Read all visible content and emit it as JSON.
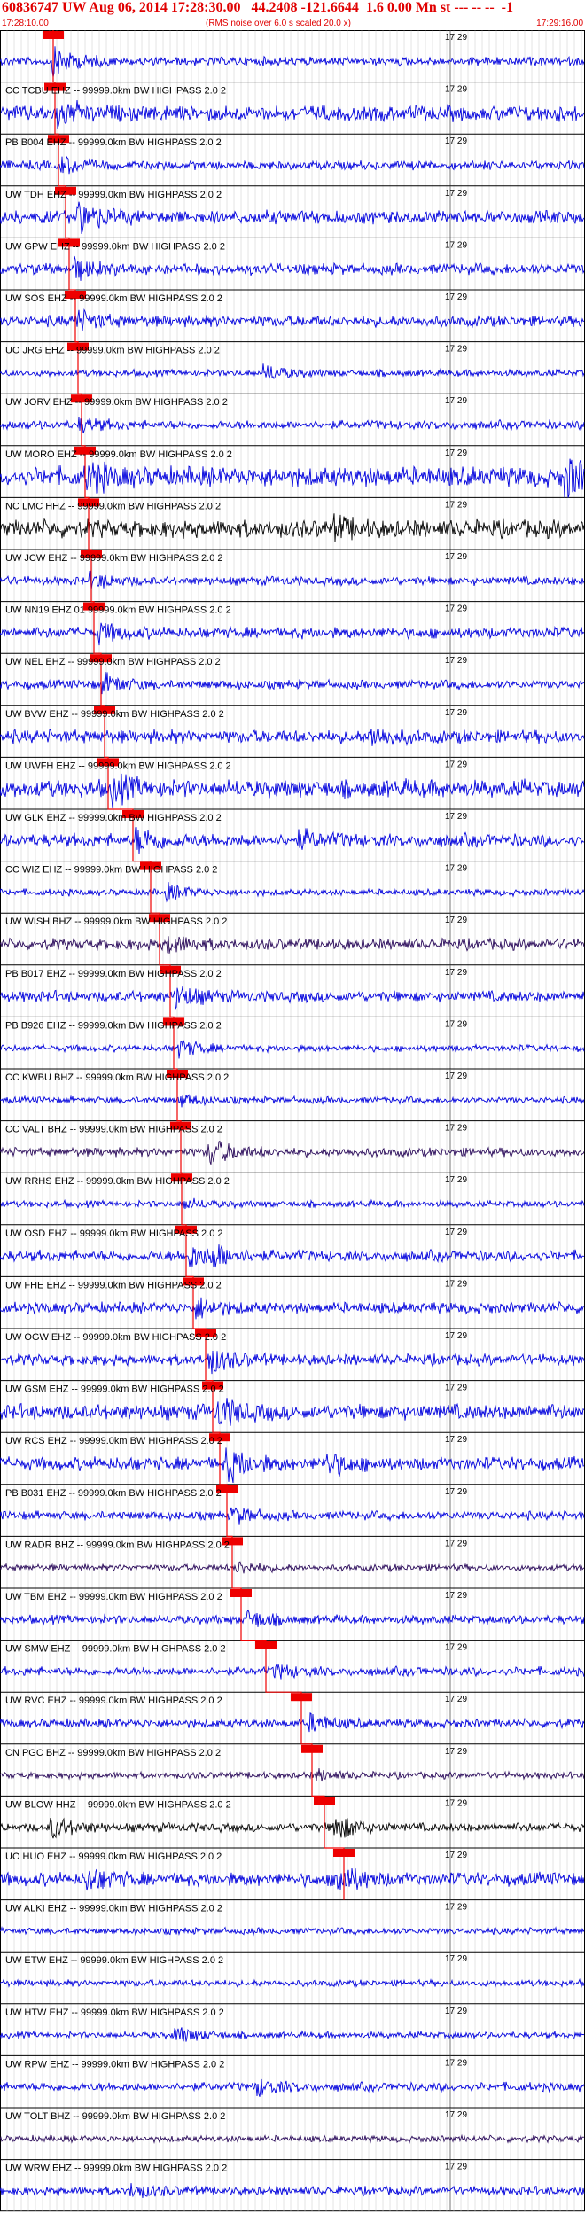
{
  "header": {
    "title": "60836747 UW Aug 06, 2014 17:28:30.00   44.2408 -121.6644  1.6 0.00 Mn st --- -- --  -1",
    "start_time": "17:28:10.00",
    "note": "(RMS noise over 6.0 s scaled 20.0 x)",
    "end_time": "17:29:16.00"
  },
  "chart_data": {
    "type": "line",
    "title": "60836747 UW Aug 06, 2014 17:28:30.00   44.2408 -121.6644  1.6 0.00 Mn st --- -- --  -1",
    "x_range": [
      "17:28:10.00",
      "17:29:16.00"
    ],
    "tick_label": "17:29",
    "grid": true,
    "colors": {
      "trace_default": "#0000dd",
      "trace_dark": "#000000",
      "trace_purple": "#2a0a5a",
      "pick": "#ee0000",
      "header": "#e00000"
    },
    "traces": [
      {
        "label": "",
        "pick_x": 60,
        "amp": 4,
        "color": "#0000dd",
        "events": [
          [
            62,
            14
          ]
        ]
      },
      {
        "label": "CC TCBU EHZ -- 99999.0km BW  HIGHPASS  2.0  2",
        "pick_x": 62,
        "amp": 7,
        "color": "#0000dd",
        "events": [
          [
            66,
            12
          ]
        ]
      },
      {
        "label": "PB B004 EHZ -- 99999.0km BW  HIGHPASS  2.0  2",
        "pick_x": 66,
        "amp": 4,
        "color": "#0000dd",
        "events": [
          [
            70,
            8
          ]
        ]
      },
      {
        "label": "UW TDH EHZ -- 99999.0km BW  HIGHPASS  2.0  2",
        "pick_x": 74,
        "amp": 6,
        "color": "#0000dd",
        "events": [
          [
            90,
            14
          ]
        ]
      },
      {
        "label": "UW GPW EHZ -- 99999.0km BW  HIGHPASS  2.0  2",
        "pick_x": 78,
        "amp": 5,
        "color": "#0000dd",
        "events": [
          [
            84,
            10
          ]
        ]
      },
      {
        "label": "UW SOS EHZ -- 99999.0km BW  HIGHPASS  2.0  2",
        "pick_x": 85,
        "amp": 5,
        "color": "#0000dd",
        "events": [
          [
            88,
            9
          ]
        ]
      },
      {
        "label": "UO JRG EHZ -- 99999.0km BW  HIGHPASS  2.0  2",
        "pick_x": 88,
        "amp": 3,
        "color": "#0000dd",
        "events": [
          [
            300,
            8
          ]
        ]
      },
      {
        "label": "UW JORV EHZ -- 99999.0km BW  HIGHPASS  2.0  2",
        "pick_x": 92,
        "amp": 4,
        "color": "#0000dd",
        "events": [
          [
            92,
            6
          ]
        ]
      },
      {
        "label": "UW MORO EHZ -- 99999.0km BW  HIGHPASS  2.0  2",
        "pick_x": 96,
        "amp": 9,
        "color": "#0000dd",
        "events": [
          [
            100,
            12
          ],
          [
            640,
            18
          ]
        ]
      },
      {
        "label": "NC LMC HHZ -- 99999.0km BW  HIGHPASS  2.0  2",
        "pick_x": 100,
        "amp": 8,
        "color": "#000000",
        "events": [
          [
            380,
            8
          ]
        ]
      },
      {
        "label": "UW JCW EHZ -- 99999.0km BW  HIGHPASS  2.0  2",
        "pick_x": 103,
        "amp": 4,
        "color": "#0000dd",
        "events": [
          [
            104,
            7
          ]
        ]
      },
      {
        "label": "UW NN19 EHZ 01 99999.0km BW  HIGHPASS  2.0  2",
        "pick_x": 106,
        "amp": 5,
        "color": "#0000dd",
        "events": [
          [
            112,
            9
          ]
        ]
      },
      {
        "label": "UW NEL EHZ -- 99999.0km BW  HIGHPASS  2.0  2",
        "pick_x": 114,
        "amp": 4,
        "color": "#0000dd",
        "events": [
          [
            118,
            10
          ]
        ]
      },
      {
        "label": "UW BVW EHZ -- 99999.0km BW  HIGHPASS  2.0  2",
        "pick_x": 118,
        "amp": 6,
        "color": "#0000dd",
        "events": [
          [
            420,
            9
          ]
        ]
      },
      {
        "label": "UW UWFH EHZ -- 99999.0km BW  HIGHPASS  2.0  2",
        "pick_x": 122,
        "amp": 8,
        "color": "#0000dd",
        "events": [
          [
            126,
            12
          ]
        ]
      },
      {
        "label": "UW GLK EHZ -- 99999.0km BW  HIGHPASS  2.0  2",
        "pick_x": 150,
        "amp": 6,
        "color": "#0000dd",
        "events": [
          [
            155,
            12
          ],
          [
            340,
            8
          ]
        ]
      },
      {
        "label": "CC WIZ EHZ -- 99999.0km BW  HIGHPASS  2.0  2",
        "pick_x": 170,
        "amp": 3,
        "color": "#0000dd",
        "events": [
          [
            190,
            8
          ]
        ]
      },
      {
        "label": "UW WISH BHZ -- 99999.0km BW  HIGHPASS  2.0  2",
        "pick_x": 180,
        "amp": 5,
        "color": "#2a0a5a",
        "events": [
          [
            192,
            8
          ]
        ]
      },
      {
        "label": "PB B017 EHZ -- 99999.0km BW  HIGHPASS  2.0  2",
        "pick_x": 192,
        "amp": 5,
        "color": "#0000dd",
        "events": [
          [
            200,
            11
          ]
        ]
      },
      {
        "label": "PB B926 EHZ -- 99999.0km BW  HIGHPASS  2.0  2",
        "pick_x": 196,
        "amp": 3,
        "color": "#0000dd",
        "events": [
          [
            202,
            9
          ]
        ]
      },
      {
        "label": "CC KWBU BHZ -- 99999.0km BW  HIGHPASS  2.0  2",
        "pick_x": 200,
        "amp": 3,
        "color": "#0000dd",
        "events": [
          [
            204,
            6
          ]
        ]
      },
      {
        "label": "CC VALT BHZ -- 99999.0km BW  HIGHPASS  2.0  2",
        "pick_x": 204,
        "amp": 4,
        "color": "#2a0a5a",
        "events": [
          [
            238,
            14
          ]
        ]
      },
      {
        "label": "UW RRHS EHZ -- 99999.0km BW  HIGHPASS  2.0  2",
        "pick_x": 205,
        "amp": 3,
        "color": "#0000dd",
        "events": [
          [
            208,
            5
          ]
        ]
      },
      {
        "label": "UW OSD EHZ -- 99999.0km BW  HIGHPASS  2.0  2",
        "pick_x": 210,
        "amp": 5,
        "color": "#0000dd",
        "events": [
          [
            216,
            10
          ],
          [
            240,
            9
          ]
        ]
      },
      {
        "label": "UW FHE EHZ -- 99999.0km BW  HIGHPASS  2.0  2",
        "pick_x": 218,
        "amp": 5,
        "color": "#0000dd",
        "events": [
          [
            224,
            9
          ]
        ]
      },
      {
        "label": "UW OGW EHZ -- 99999.0km BW  HIGHPASS  2.0  2",
        "pick_x": 232,
        "amp": 5,
        "color": "#0000dd",
        "events": [
          [
            238,
            12
          ]
        ]
      },
      {
        "label": "UW GSM EHZ -- 99999.0km BW  HIGHPASS  2.0  2",
        "pick_x": 240,
        "amp": 7,
        "color": "#0000dd",
        "events": [
          [
            248,
            13
          ]
        ]
      },
      {
        "label": "UW RCS EHZ -- 99999.0km BW  HIGHPASS  2.0  2",
        "pick_x": 248,
        "amp": 6,
        "color": "#0000dd",
        "events": [
          [
            258,
            16
          ],
          [
            370,
            10
          ]
        ]
      },
      {
        "label": "PB B031 EHZ -- 99999.0km BW  HIGHPASS  2.0  2",
        "pick_x": 256,
        "amp": 4,
        "color": "#0000dd",
        "events": [
          [
            264,
            8
          ]
        ]
      },
      {
        "label": "UW RADR BHZ -- 99999.0km BW  HIGHPASS  2.0  2",
        "pick_x": 262,
        "amp": 3,
        "color": "#2a0a5a",
        "events": [
          [
            270,
            6
          ]
        ]
      },
      {
        "label": "UW TBM EHZ -- 99999.0km BW  HIGHPASS  2.0  2",
        "pick_x": 272,
        "amp": 4,
        "color": "#0000dd",
        "events": [
          [
            282,
            8
          ]
        ]
      },
      {
        "label": "UW SMW EHZ -- 99999.0km BW  HIGHPASS  2.0  2",
        "pick_x": 300,
        "amp": 4,
        "color": "#0000dd",
        "events": [
          [
            312,
            6
          ]
        ]
      },
      {
        "label": "UW RVC EHZ -- 99999.0km BW  HIGHPASS  2.0  2",
        "pick_x": 340,
        "amp": 4,
        "color": "#0000dd",
        "events": [
          [
            352,
            8
          ]
        ]
      },
      {
        "label": "CN PGC BHZ -- 99999.0km BW  HIGHPASS  2.0  2",
        "pick_x": 352,
        "amp": 3,
        "color": "#2a0a5a",
        "events": [
          [
            360,
            5
          ]
        ]
      },
      {
        "label": "UW BLOW HHZ -- 99999.0km BW  HIGHPASS  2.0  2",
        "pick_x": 366,
        "amp": 4,
        "color": "#000000",
        "events": [
          [
            60,
            10
          ],
          [
            378,
            14
          ]
        ]
      },
      {
        "label": "UO HUO EHZ -- 99999.0km BW  HIGHPASS  2.0  2",
        "pick_x": 388,
        "amp": 6,
        "color": "#0000dd",
        "events": [
          [
            100,
            10
          ],
          [
            380,
            16
          ]
        ]
      },
      {
        "label": "UW ALKI EHZ -- 99999.0km BW  HIGHPASS  2.0  2",
        "pick_x": null,
        "amp": 3,
        "color": "#0000dd",
        "events": []
      },
      {
        "label": "UW ETW EHZ -- 99999.0km BW  HIGHPASS  2.0  2",
        "pick_x": null,
        "amp": 3,
        "color": "#0000dd",
        "events": []
      },
      {
        "label": "UW HTW EHZ -- 99999.0km BW  HIGHPASS  2.0  2",
        "pick_x": null,
        "amp": 3,
        "color": "#0000dd",
        "events": [
          [
            200,
            8
          ]
        ]
      },
      {
        "label": "UW RPW EHZ -- 99999.0km BW  HIGHPASS  2.0  2",
        "pick_x": null,
        "amp": 4,
        "color": "#0000dd",
        "events": [
          [
            290,
            8
          ]
        ]
      },
      {
        "label": "UW TOLT BHZ -- 99999.0km BW  HIGHPASS  2.0  2",
        "pick_x": null,
        "amp": 3,
        "color": "#2a0a5a",
        "events": []
      },
      {
        "label": "UW WRW EHZ -- 99999.0km BW  HIGHPASS  2.0  2",
        "pick_x": null,
        "amp": 4,
        "color": "#0000dd",
        "events": [
          [
            150,
            6
          ]
        ]
      }
    ]
  }
}
